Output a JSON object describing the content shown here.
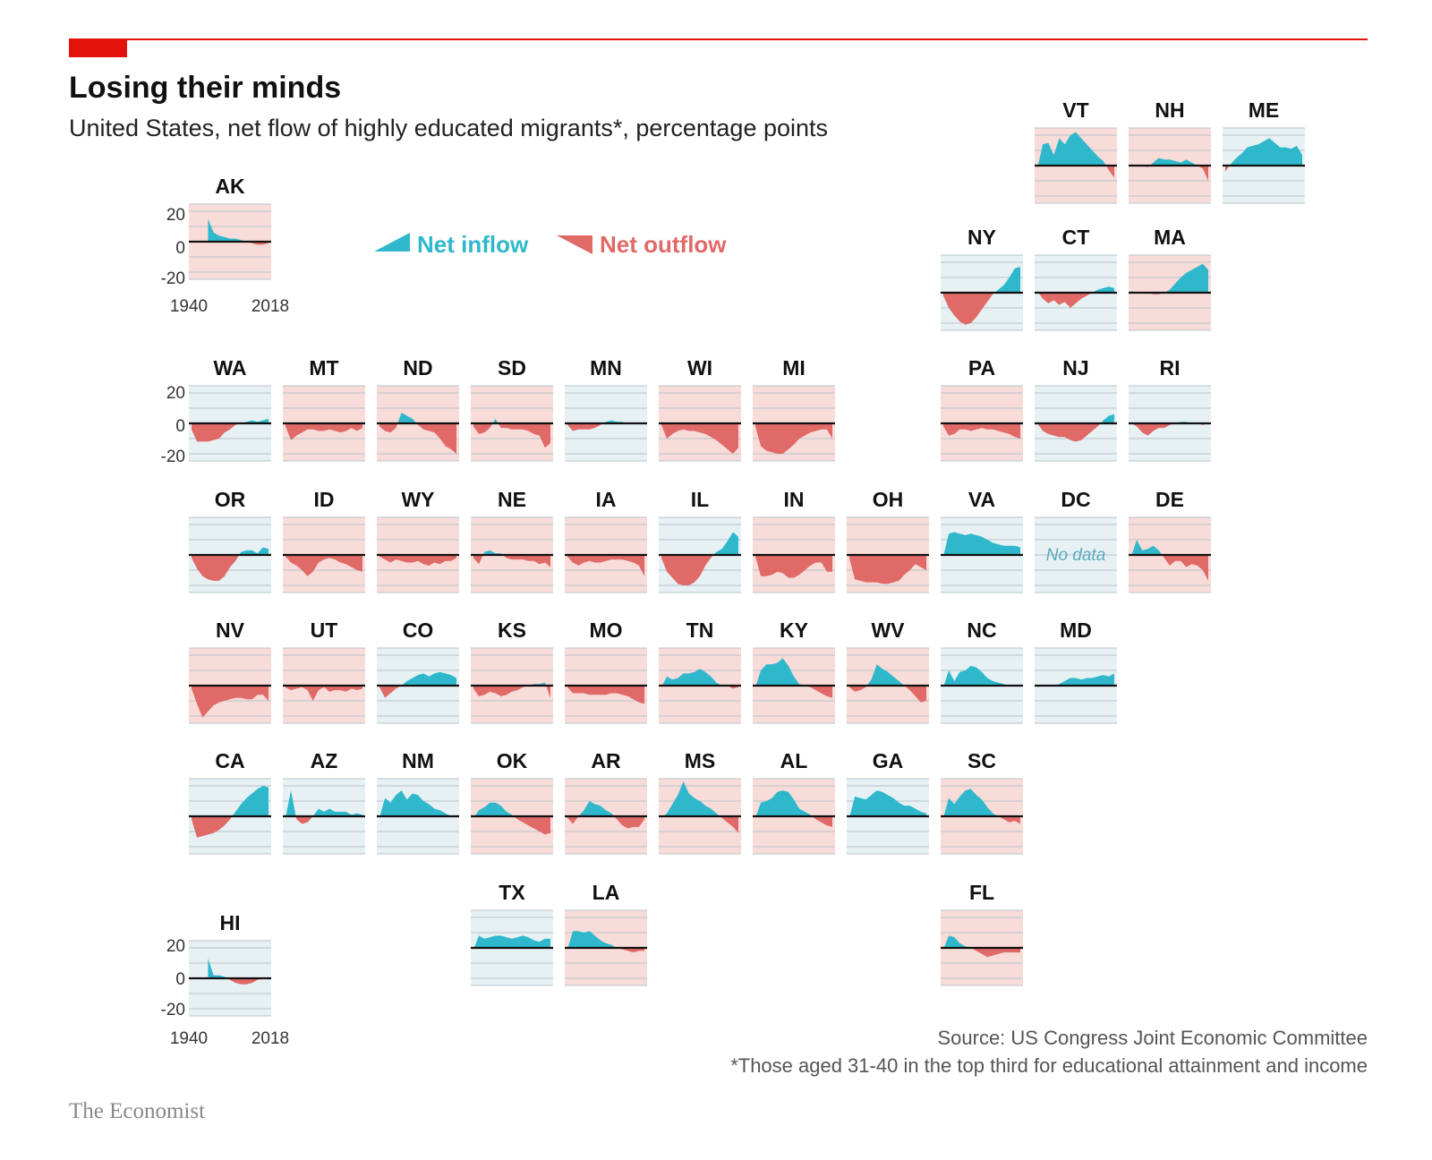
{
  "header": {
    "title": "Losing their minds",
    "subtitle": "United States, net flow of highly educated migrants*, percentage points",
    "accent_color": "#e3120b"
  },
  "legend": {
    "inflow_label": "Net inflow",
    "outflow_label": "Net outflow",
    "inflow_color": "#2fb8cb",
    "outflow_color": "#e06a68",
    "placement": "top-left"
  },
  "axis": {
    "y_ticks": [
      "20",
      "0",
      "-20"
    ],
    "x_start_label": "1940",
    "x_end_label": "2018",
    "ylim": [
      -20,
      20
    ]
  },
  "footer": {
    "source": "Source: US Congress Joint Economic Committee",
    "note": "*Those aged 31-40 in the top third for educational attainment and income",
    "brand": "The Economist"
  },
  "no_data_text": "No data",
  "chart_data": {
    "type": "area",
    "x_label_start": 1940,
    "x_label_end": 2018,
    "ylim": [
      -20,
      20
    ],
    "grid": true,
    "note": "",
    "states": [
      {
        "code": "AK",
        "bg": "out",
        "values": [
          null,
          null,
          null,
          15,
          6,
          4,
          3,
          2,
          2,
          1,
          0,
          -1,
          -2,
          -2,
          -1
        ]
      },
      {
        "code": "VT",
        "bg": "out",
        "values": [
          -2,
          14,
          15,
          7,
          18,
          14,
          20,
          22,
          18,
          14,
          10,
          6,
          3,
          -3,
          -8
        ]
      },
      {
        "code": "NH",
        "bg": "out",
        "values": [
          1,
          0,
          0,
          -1,
          2,
          5,
          4,
          4,
          3,
          2,
          4,
          2,
          0,
          -2,
          -10
        ]
      },
      {
        "code": "ME",
        "bg": "in",
        "values": [
          -4,
          1,
          5,
          8,
          12,
          13,
          14,
          16,
          18,
          15,
          12,
          12,
          11,
          13,
          7
        ]
      },
      {
        "code": "NY",
        "bg": "in",
        "values": [
          -2,
          -10,
          -15,
          -19,
          -21,
          -20,
          -16,
          -11,
          -6,
          -1,
          2,
          5,
          10,
          16,
          17
        ]
      },
      {
        "code": "CT",
        "bg": "in",
        "values": [
          1,
          -4,
          -7,
          -5,
          -8,
          -6,
          -10,
          -7,
          -4,
          -2,
          0,
          2,
          3,
          4,
          3
        ]
      },
      {
        "code": "MA",
        "bg": "out",
        "values": [
          1,
          0,
          0,
          0,
          -1,
          -1,
          0,
          2,
          6,
          10,
          13,
          15,
          17,
          19,
          15
        ]
      },
      {
        "code": "WA",
        "bg": "in",
        "values": [
          -4,
          -12,
          -12,
          -12,
          -11,
          -10,
          -6,
          -4,
          -1,
          0,
          1,
          2,
          1,
          2,
          3
        ]
      },
      {
        "code": "MT",
        "bg": "out",
        "values": [
          -2,
          -11,
          -8,
          -6,
          -4,
          -4,
          -5,
          -5,
          -4,
          -5,
          -6,
          -5,
          -3,
          -5,
          -3
        ]
      },
      {
        "code": "ND",
        "bg": "out",
        "values": [
          -2,
          -5,
          -6,
          -3,
          7,
          5,
          3,
          -1,
          -4,
          -5,
          -6,
          -10,
          -15,
          -17,
          -20
        ]
      },
      {
        "code": "SD",
        "bg": "out",
        "values": [
          -2,
          -7,
          -6,
          -3,
          3,
          -3,
          -3,
          -4,
          -4,
          -4,
          -5,
          -7,
          -8,
          -16,
          -13
        ]
      },
      {
        "code": "MN",
        "bg": "in",
        "values": [
          -1,
          -5,
          -4,
          -4,
          -4,
          -3,
          -1,
          1,
          2,
          1,
          1,
          0,
          0,
          0,
          0
        ]
      },
      {
        "code": "WI",
        "bg": "out",
        "values": [
          -1,
          -10,
          -7,
          -5,
          -4,
          -5,
          -5,
          -6,
          -7,
          -9,
          -11,
          -14,
          -17,
          -20,
          -16
        ]
      },
      {
        "code": "MI",
        "bg": "out",
        "values": [
          -2,
          -15,
          -18,
          -19,
          -20,
          -20,
          -17,
          -14,
          -10,
          -8,
          -6,
          -5,
          -4,
          -4,
          -10
        ]
      },
      {
        "code": "PA",
        "bg": "out",
        "values": [
          -2,
          -8,
          -7,
          -4,
          -4,
          -5,
          -4,
          -3,
          -4,
          -4,
          -5,
          -6,
          -7,
          -9,
          -10
        ]
      },
      {
        "code": "NJ",
        "bg": "in",
        "values": [
          0,
          -5,
          -7,
          -8,
          -9,
          -9,
          -11,
          -12,
          -11,
          -8,
          -5,
          -2,
          2,
          5,
          6
        ]
      },
      {
        "code": "RI",
        "bg": "in",
        "values": [
          0,
          -2,
          -6,
          -8,
          -5,
          -3,
          -3,
          -1,
          0,
          1,
          1,
          0,
          0,
          -1,
          0
        ]
      },
      {
        "code": "OR",
        "bg": "in",
        "values": [
          -2,
          -9,
          -14,
          -16,
          -17,
          -17,
          -14,
          -8,
          -4,
          2,
          3,
          3,
          1,
          5,
          4
        ]
      },
      {
        "code": "ID",
        "bg": "out",
        "values": [
          -1,
          -5,
          -7,
          -10,
          -14,
          -11,
          -5,
          -3,
          -2,
          -3,
          -5,
          -6,
          -8,
          -10,
          -11
        ]
      },
      {
        "code": "WY",
        "bg": "out",
        "values": [
          -1,
          -3,
          -5,
          -3,
          -4,
          -5,
          -5,
          -4,
          -6,
          -7,
          -5,
          -6,
          -4,
          -4,
          -2
        ]
      },
      {
        "code": "NE",
        "bg": "out",
        "values": [
          -2,
          -6,
          2,
          3,
          1,
          1,
          -2,
          -3,
          -3,
          -3,
          -4,
          -4,
          -6,
          -5,
          -8
        ]
      },
      {
        "code": "IA",
        "bg": "out",
        "values": [
          -1,
          -5,
          -7,
          -5,
          -4,
          -5,
          -5,
          -4,
          -3,
          -3,
          -3,
          -4,
          -5,
          -7,
          -14
        ]
      },
      {
        "code": "IL",
        "bg": "in",
        "values": [
          -2,
          -11,
          -15,
          -19,
          -20,
          -20,
          -18,
          -14,
          -7,
          -2,
          2,
          4,
          9,
          15,
          12
        ]
      },
      {
        "code": "IN",
        "bg": "out",
        "values": [
          -1,
          -14,
          -14,
          -13,
          -11,
          -12,
          -15,
          -15,
          -13,
          -10,
          -7,
          -5,
          -5,
          -11,
          -11
        ]
      },
      {
        "code": "OH",
        "bg": "out",
        "values": [
          -2,
          -16,
          -17,
          -18,
          -18,
          -18,
          -19,
          -19,
          -18,
          -17,
          -13,
          -10,
          -6,
          -8,
          -10
        ]
      },
      {
        "code": "VA",
        "bg": "in",
        "values": [
          -1,
          14,
          15,
          14,
          13,
          14,
          13,
          12,
          10,
          8,
          7,
          6,
          6,
          6,
          5
        ]
      },
      {
        "code": "DC",
        "bg": "in",
        "nodata": true,
        "values": []
      },
      {
        "code": "DE",
        "bg": "out",
        "values": [
          -1,
          10,
          3,
          4,
          6,
          3,
          -2,
          -7,
          -4,
          -4,
          -8,
          -6,
          -7,
          -10,
          -17
        ]
      },
      {
        "code": "NV",
        "bg": "out",
        "values": [
          -2,
          -12,
          -21,
          -17,
          -13,
          -11,
          -10,
          -9,
          -8,
          -8,
          -9,
          -9,
          -6,
          -6,
          -10
        ]
      },
      {
        "code": "UT",
        "bg": "out",
        "values": [
          -1,
          -3,
          -2,
          -1,
          -3,
          -10,
          -3,
          -1,
          -4,
          -3,
          -3,
          -4,
          -2,
          -3,
          -2
        ]
      },
      {
        "code": "CO",
        "bg": "in",
        "values": [
          -1,
          -8,
          -5,
          -2,
          0,
          3,
          5,
          7,
          8,
          6,
          8,
          9,
          8,
          7,
          5
        ]
      },
      {
        "code": "KS",
        "bg": "out",
        "values": [
          -2,
          -7,
          -6,
          -4,
          -5,
          -7,
          -6,
          -4,
          -3,
          -1,
          0,
          1,
          1,
          2,
          -8
        ]
      },
      {
        "code": "MO",
        "bg": "out",
        "values": [
          -1,
          -5,
          -5,
          -5,
          -6,
          -6,
          -6,
          -6,
          -5,
          -5,
          -6,
          -7,
          -9,
          -11,
          -12
        ]
      },
      {
        "code": "TN",
        "bg": "out",
        "values": [
          -1,
          6,
          4,
          5,
          8,
          8,
          9,
          11,
          9,
          6,
          2,
          0,
          0,
          -2,
          -1
        ]
      },
      {
        "code": "KY",
        "bg": "out",
        "values": [
          -1,
          10,
          14,
          14,
          15,
          18,
          13,
          6,
          1,
          0,
          -1,
          -3,
          -5,
          -7,
          -8
        ]
      },
      {
        "code": "WV",
        "bg": "out",
        "values": [
          -1,
          -4,
          -3,
          -1,
          4,
          14,
          11,
          9,
          6,
          3,
          0,
          -3,
          -7,
          -11,
          -10
        ]
      },
      {
        "code": "NC",
        "bg": "in",
        "values": [
          -1,
          10,
          3,
          9,
          10,
          13,
          12,
          9,
          5,
          3,
          2,
          1,
          0,
          0,
          0
        ]
      },
      {
        "code": "MD",
        "bg": "in",
        "values": [
          -1,
          0,
          0,
          0,
          1,
          3,
          5,
          5,
          4,
          5,
          5,
          6,
          7,
          6,
          8
        ]
      },
      {
        "code": "CA",
        "bg": "in",
        "values": [
          -2,
          -14,
          -13,
          -12,
          -11,
          -9,
          -6,
          -2,
          3,
          8,
          12,
          15,
          18,
          20,
          19
        ]
      },
      {
        "code": "AZ",
        "bg": "in",
        "values": [
          -1,
          17,
          -2,
          -5,
          -4,
          0,
          5,
          3,
          5,
          3,
          3,
          3,
          1,
          2,
          1
        ]
      },
      {
        "code": "NM",
        "bg": "in",
        "values": [
          -1,
          12,
          9,
          14,
          17,
          11,
          15,
          14,
          10,
          8,
          5,
          4,
          2,
          0,
          0
        ]
      },
      {
        "code": "OK",
        "bg": "out",
        "values": [
          -1,
          4,
          6,
          9,
          9,
          7,
          3,
          1,
          -2,
          -4,
          -6,
          -8,
          -10,
          -12,
          -11
        ]
      },
      {
        "code": "AR",
        "bg": "out",
        "values": [
          -1,
          -5,
          0,
          4,
          10,
          8,
          7,
          4,
          2,
          -2,
          -6,
          -8,
          -7,
          -7,
          -2
        ]
      },
      {
        "code": "MS",
        "bg": "out",
        "values": [
          -1,
          2,
          8,
          14,
          23,
          15,
          12,
          10,
          7,
          5,
          2,
          -1,
          -4,
          -7,
          -11
        ]
      },
      {
        "code": "AL",
        "bg": "out",
        "values": [
          -1,
          9,
          10,
          12,
          16,
          17,
          16,
          11,
          5,
          3,
          1,
          -2,
          -4,
          -6,
          -7
        ]
      },
      {
        "code": "GA",
        "bg": "in",
        "values": [
          -1,
          13,
          12,
          11,
          14,
          17,
          16,
          14,
          12,
          9,
          7,
          7,
          5,
          3,
          2
        ]
      },
      {
        "code": "SC",
        "bg": "out",
        "values": [
          -1,
          12,
          8,
          13,
          17,
          18,
          14,
          11,
          6,
          2,
          0,
          -2,
          -4,
          -3,
          -5
        ]
      },
      {
        "code": "HI",
        "bg": "in",
        "values": [
          null,
          null,
          null,
          13,
          2,
          2,
          1,
          -1,
          -3,
          -4,
          -4,
          -3,
          -1,
          0,
          0
        ]
      },
      {
        "code": "TX",
        "bg": "in",
        "values": [
          -1,
          8,
          6,
          7,
          8,
          8,
          7,
          6,
          7,
          8,
          7,
          5,
          4,
          6,
          6
        ]
      },
      {
        "code": "LA",
        "bg": "out",
        "values": [
          -1,
          11,
          11,
          10,
          11,
          8,
          5,
          3,
          2,
          0,
          -1,
          -2,
          -3,
          -2,
          -2
        ]
      },
      {
        "code": "FL",
        "bg": "out",
        "values": [
          -1,
          8,
          7,
          3,
          1,
          0,
          -2,
          -4,
          -6,
          -5,
          -4,
          -3,
          -3,
          -3,
          -3
        ]
      }
    ]
  }
}
